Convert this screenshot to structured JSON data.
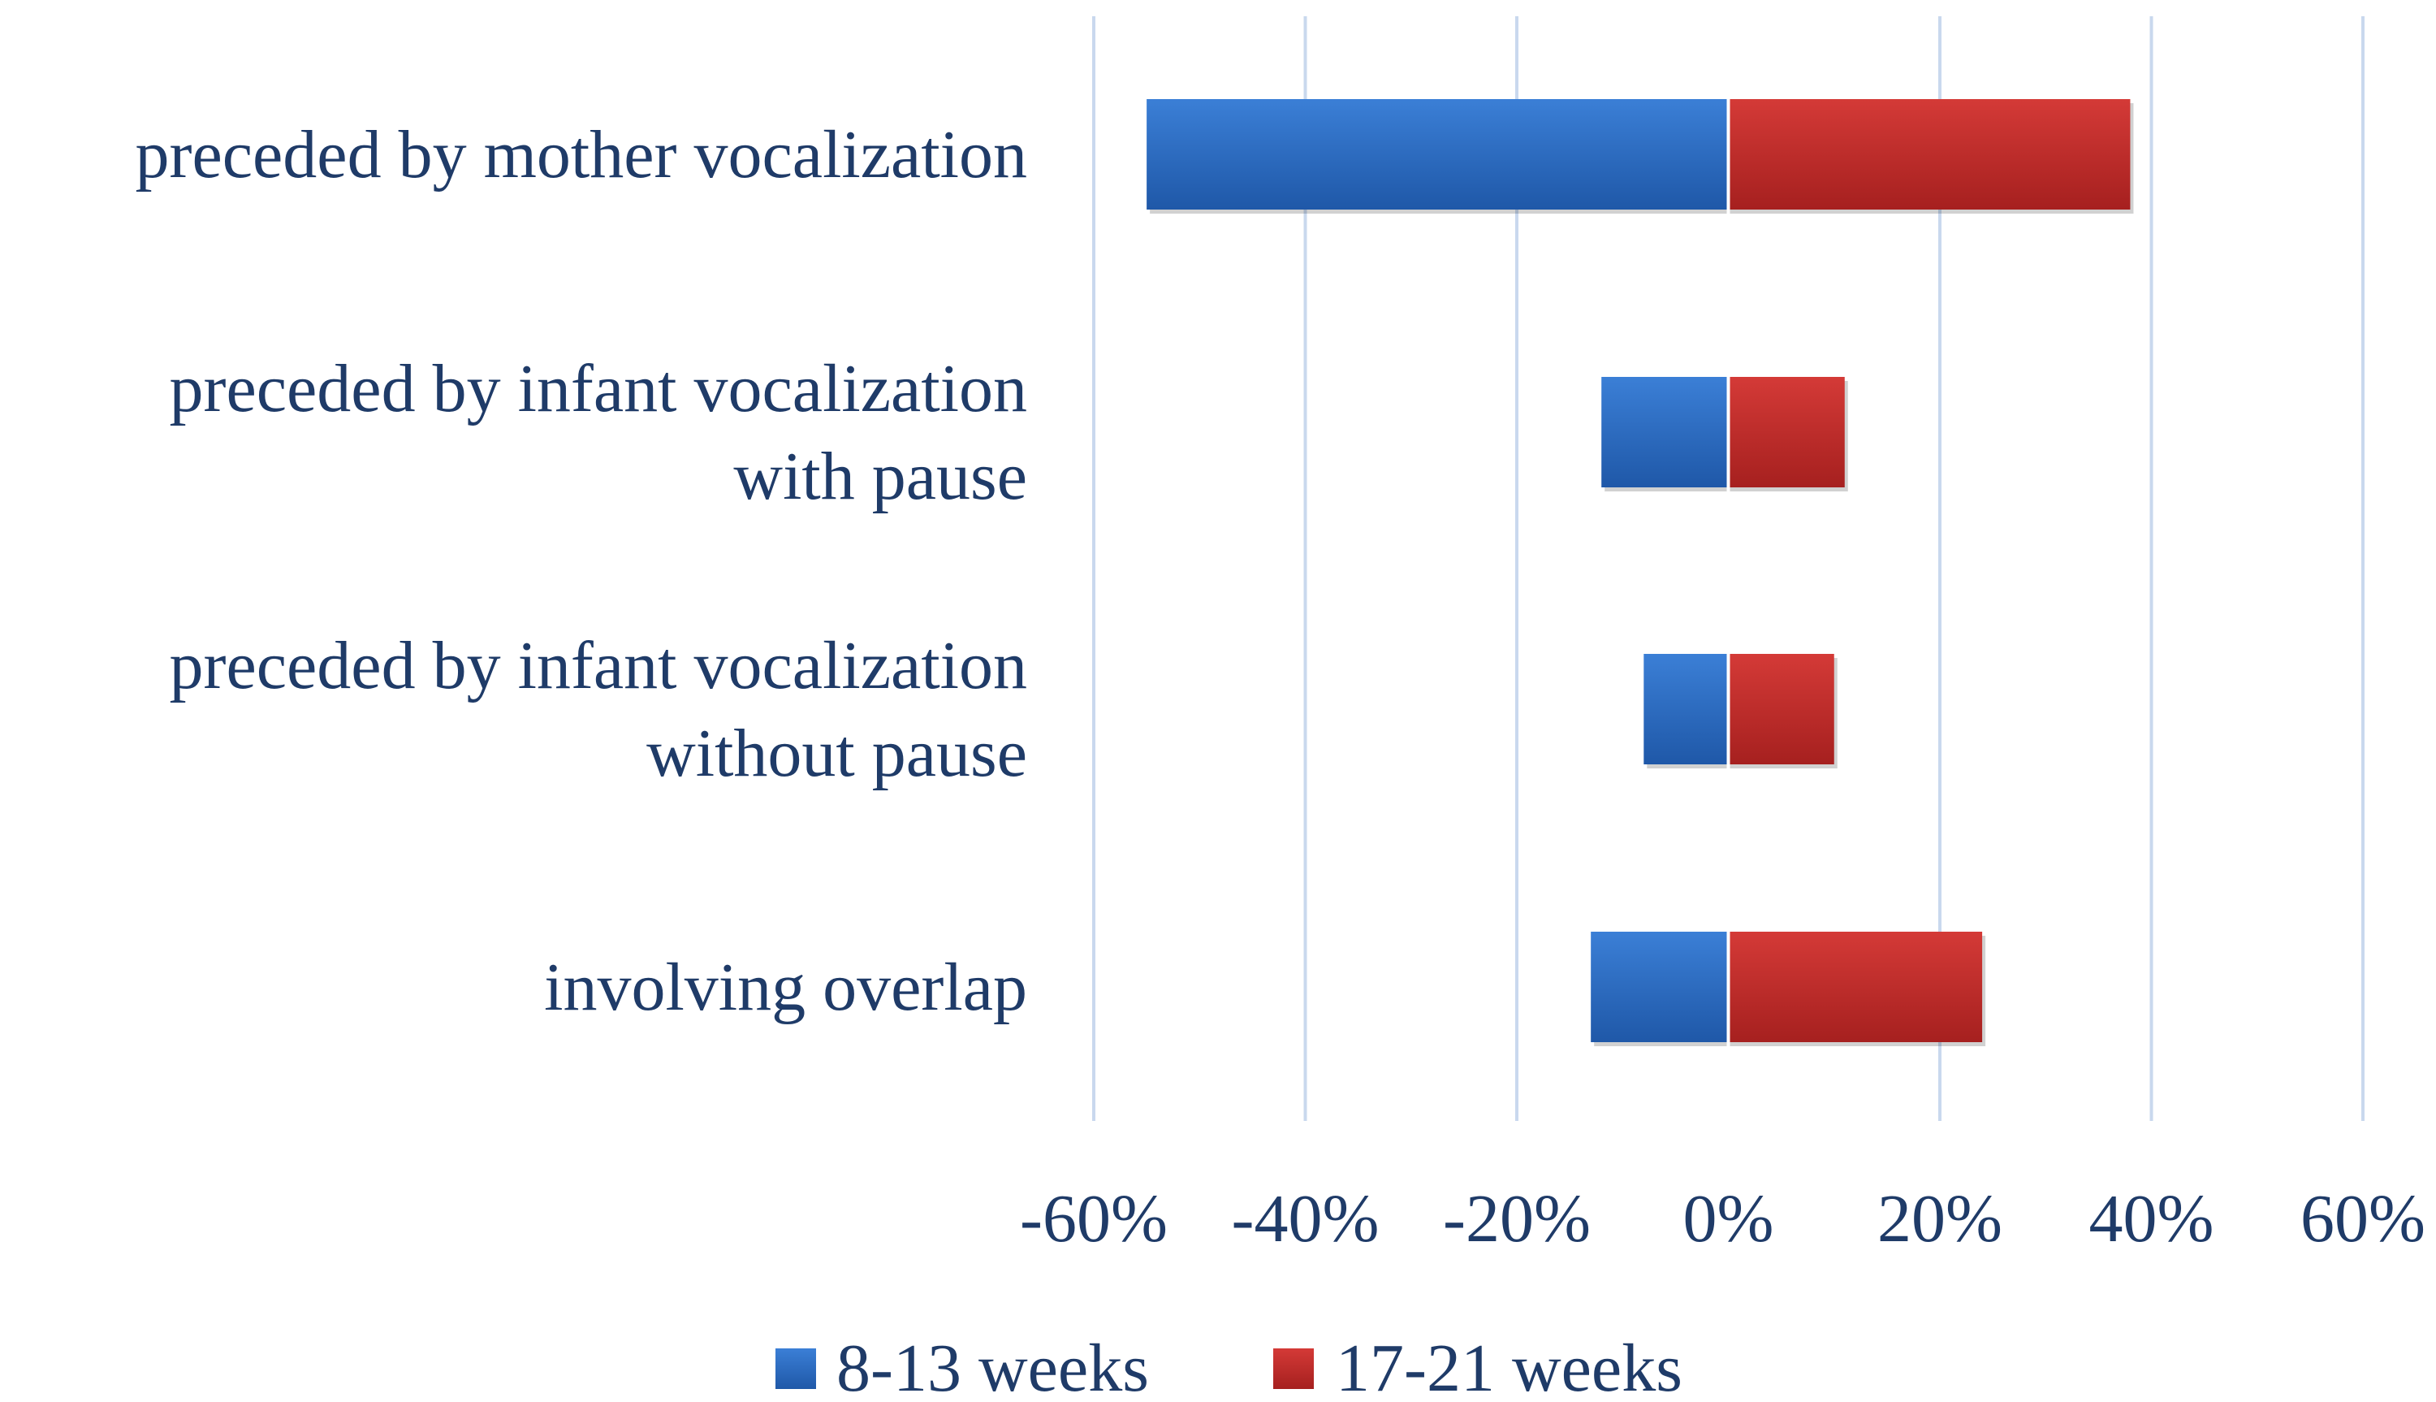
{
  "chart_data": {
    "type": "bar",
    "orientation": "horizontal",
    "layout": "diverging",
    "categories": [
      [
        "preceded by mother vocalization"
      ],
      [
        "preceded by infant vocalization",
        "with pause"
      ],
      [
        "preceded by infant vocalization",
        "without pause"
      ],
      [
        "involving overlap"
      ]
    ],
    "series": [
      {
        "name": "8-13 weeks",
        "values": [
          -55,
          -12,
          -8,
          -13
        ],
        "color": "#2e6fc6"
      },
      {
        "name": "17-21 weeks",
        "values": [
          38,
          11,
          10,
          24
        ],
        "color": "#c0302e"
      }
    ],
    "xticks": [
      "-60%",
      "-40%",
      "-20%",
      "0%",
      "20%",
      "40%",
      "60%"
    ],
    "xlim": [
      -60,
      60
    ],
    "grid": true,
    "legend": "bottom-center",
    "title": "",
    "xlabel": "",
    "ylabel": ""
  }
}
